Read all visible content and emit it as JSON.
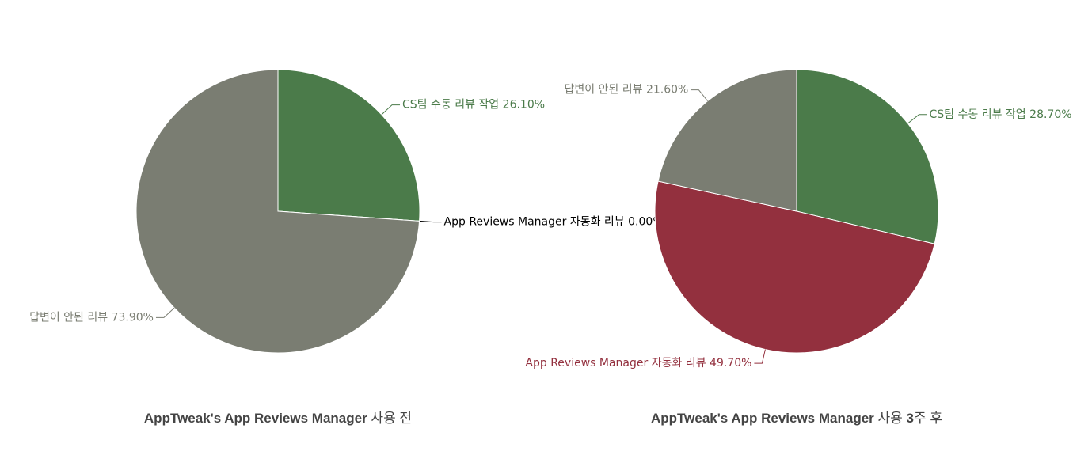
{
  "chart_data": [
    {
      "type": "pie",
      "title": [
        {
          "text": "AppTweak's App Reviews Manager",
          "bold": true
        },
        {
          "text": " 사용 전",
          "bold": false
        }
      ],
      "categories": [
        "CS팀 수동 리뷰 작업",
        "App Reviews Manager 자동화 리뷰",
        "답변이 안된 리뷰"
      ],
      "values": [
        26.1,
        0,
        73.9
      ],
      "value_labels": [
        "26.10%",
        "0.00%",
        "73.90%"
      ],
      "colors": [
        "#4b7b4a",
        "#000000",
        "#7a7d72"
      ]
    },
    {
      "type": "pie",
      "title": [
        {
          "text": "AppTweak's App Reviews Manager",
          "bold": true
        },
        {
          "text": " 사용 ",
          "bold": false
        },
        {
          "text": "3",
          "bold": true
        },
        {
          "text": "주 후",
          "bold": false
        }
      ],
      "categories": [
        "CS팀 수동 리뷰 작업",
        "App Reviews Manager 자동화 리뷰",
        "답변이 안된 리뷰"
      ],
      "values": [
        28.7,
        49.7,
        21.6
      ],
      "value_labels": [
        "28.70%",
        "49.70%",
        "21.60%"
      ],
      "colors": [
        "#4b7b4a",
        "#93303e",
        "#7a7d72"
      ]
    }
  ]
}
